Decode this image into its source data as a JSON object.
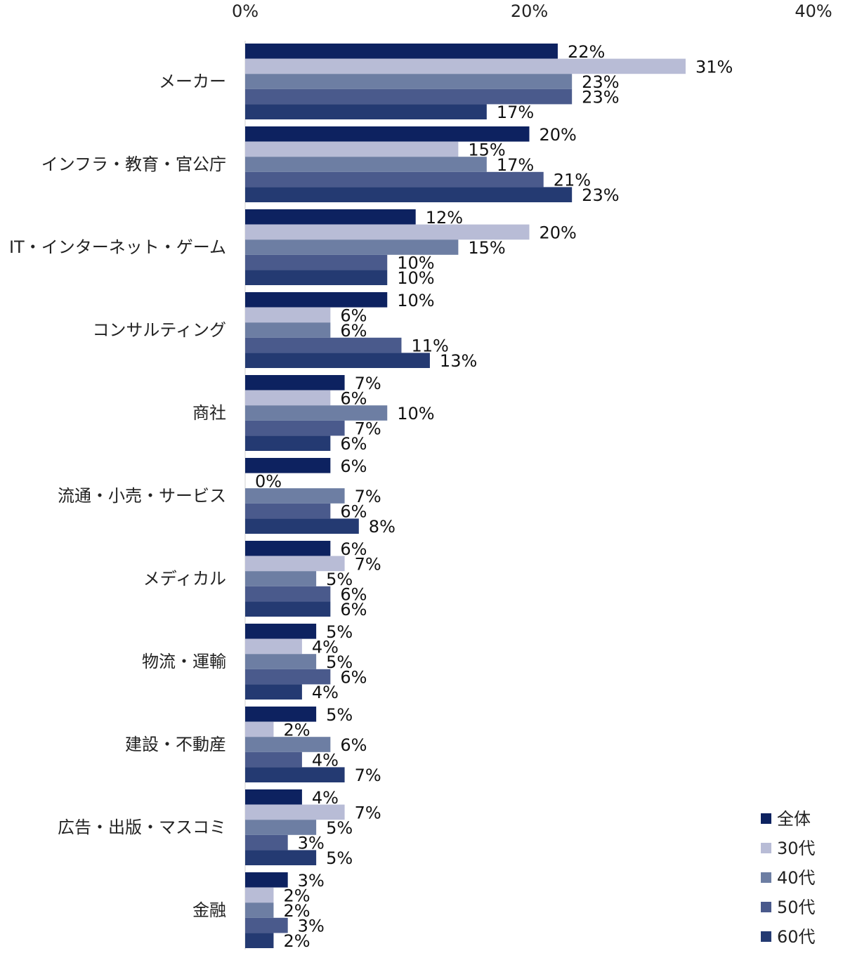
{
  "chart_data": {
    "type": "bar",
    "orientation": "horizontal",
    "title": "",
    "xlabel": "",
    "ylabel": "",
    "xlim": [
      0,
      40
    ],
    "x_ticks": [
      "0%",
      "20%",
      "40%"
    ],
    "x_tick_values": [
      0,
      20,
      40
    ],
    "x_axis_position": "top",
    "grid": false,
    "legend_position": "bottom-right",
    "value_suffix": "%",
    "categories": [
      "メーカー",
      "インフラ・教育・官公庁",
      "IT・インターネット・ゲーム",
      "コンサルティング",
      "商社",
      "流通・小売・サービス",
      "メディカル",
      "物流・運輸",
      "建設・不動産",
      "広告・出版・マスコミ",
      "金融"
    ],
    "series": [
      {
        "name": "全体",
        "color": "#0d2260",
        "values": [
          22,
          20,
          12,
          10,
          7,
          6,
          6,
          5,
          5,
          4,
          3
        ]
      },
      {
        "name": "30代",
        "color": "#b8bcd6",
        "values": [
          31,
          15,
          20,
          6,
          6,
          0,
          7,
          4,
          2,
          7,
          2
        ]
      },
      {
        "name": "40代",
        "color": "#6d7ea3",
        "values": [
          23,
          17,
          15,
          6,
          10,
          7,
          5,
          5,
          6,
          5,
          2
        ]
      },
      {
        "name": "50代",
        "color": "#4a5a8c",
        "values": [
          23,
          21,
          10,
          11,
          7,
          6,
          6,
          6,
          4,
          3,
          3
        ]
      },
      {
        "name": "60代",
        "color": "#243a72",
        "values": [
          17,
          23,
          10,
          13,
          6,
          8,
          6,
          4,
          7,
          5,
          2
        ]
      }
    ]
  }
}
